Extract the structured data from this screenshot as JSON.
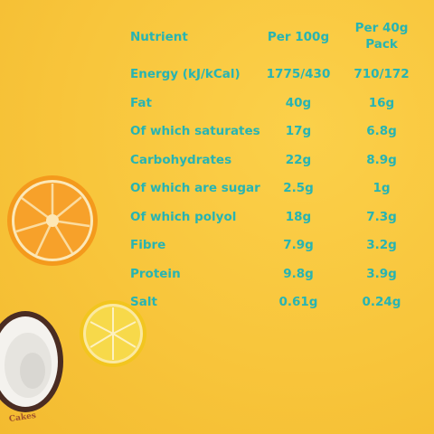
{
  "table": {
    "header": {
      "nutrient": "Nutrient",
      "per100": "Per 100g",
      "per40": "Per 40g Pack"
    },
    "rows": [
      {
        "name": "Energy (kJ/kCal)",
        "per100": "1775/430",
        "per40": "710/172"
      },
      {
        "name": "Fat",
        "per100": "40g",
        "per40": "16g"
      },
      {
        "name": "Of which saturates",
        "per100": "17g",
        "per40": "6.8g"
      },
      {
        "name": "Carbohydrates",
        "per100": "22g",
        "per40": "8.9g"
      },
      {
        "name": "Of which are sugar",
        "per100": "2.5g",
        "per40": "1g"
      },
      {
        "name": "Of which polyol",
        "per100": "18g",
        "per40": "7.3g"
      },
      {
        "name": "Fibre",
        "per100": "7.9g",
        "per40": "3.2g"
      },
      {
        "name": "Protein",
        "per100": "9.8g",
        "per40": "3.9g"
      },
      {
        "name": "Salt",
        "per100": "0.61g",
        "per40": "0.24g"
      }
    ]
  },
  "logo": {
    "text": "Cakes"
  },
  "colors": {
    "background": "#f9c73f",
    "text": "#27b4b3"
  }
}
